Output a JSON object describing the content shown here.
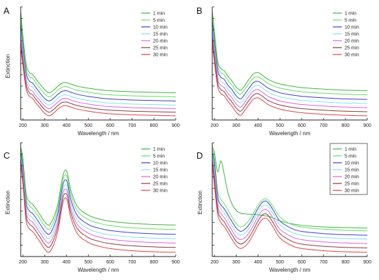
{
  "chart_data": [
    {
      "type": "line",
      "panel_label": "A",
      "xlabel": "Wavelength / nm",
      "ylabel": "Extinction",
      "xlim": [
        190,
        900
      ],
      "y_ticks_labeled": false,
      "xticks": [
        200,
        300,
        400,
        500,
        600,
        700,
        800,
        900
      ],
      "legend_boxed": false,
      "legend_position": "top-right",
      "x": [
        190,
        200,
        215,
        230,
        245,
        260,
        280,
        300,
        320,
        340,
        360,
        380,
        400,
        420,
        450,
        500,
        550,
        600,
        700,
        800,
        900
      ],
      "series": [
        {
          "name": "1 min",
          "color": "#3cb43c",
          "values": [
            20.2,
            15.5,
            9.8,
            8.2,
            7.8,
            6.9,
            5.8,
            4.8,
            4.2,
            4.7,
            5.5,
            6.1,
            6.2,
            5.9,
            5.5,
            5.1,
            4.8,
            4.6,
            4.4,
            4.3,
            4.2
          ]
        },
        {
          "name": "5 min",
          "color": "#60e060",
          "values": [
            19.0,
            14.5,
            9.0,
            7.4,
            7.0,
            6.1,
            5.0,
            4.0,
            3.4,
            3.9,
            4.7,
            5.3,
            5.4,
            5.1,
            4.7,
            4.3,
            4.0,
            3.8,
            3.6,
            3.5,
            3.4
          ]
        },
        {
          "name": "10 min",
          "color": "#3c3cc8",
          "values": [
            17.8,
            13.5,
            8.1,
            6.5,
            6.1,
            5.2,
            4.1,
            3.1,
            2.6,
            3.1,
            3.9,
            4.5,
            4.6,
            4.3,
            3.9,
            3.5,
            3.2,
            3.0,
            2.8,
            2.7,
            2.6
          ]
        },
        {
          "name": "15 min",
          "color": "#80e0f0",
          "values": [
            16.6,
            12.5,
            7.3,
            5.7,
            5.3,
            4.4,
            3.3,
            2.3,
            1.8,
            2.3,
            3.1,
            3.7,
            3.8,
            3.5,
            3.1,
            2.7,
            2.4,
            2.2,
            2.0,
            1.9,
            1.8
          ]
        },
        {
          "name": "20 min",
          "color": "#e060e0",
          "values": [
            15.4,
            11.5,
            6.5,
            4.9,
            4.5,
            3.6,
            2.6,
            1.6,
            1.1,
            1.6,
            2.4,
            3.0,
            3.1,
            2.8,
            2.4,
            2.0,
            1.7,
            1.5,
            1.3,
            1.2,
            1.1
          ]
        },
        {
          "name": "25 min",
          "color": "#8a3a3a",
          "values": [
            14.2,
            10.6,
            5.7,
            4.2,
            3.8,
            2.9,
            1.9,
            0.9,
            0.4,
            0.9,
            1.7,
            2.3,
            2.4,
            2.1,
            1.7,
            1.3,
            1.0,
            0.8,
            0.6,
            0.5,
            0.4
          ]
        },
        {
          "name": "30 min",
          "color": "#e04040",
          "values": [
            13.0,
            9.6,
            5.0,
            3.5,
            3.1,
            2.2,
            1.2,
            0.2,
            -0.3,
            0.2,
            1.0,
            1.6,
            1.7,
            1.4,
            1.0,
            0.6,
            0.3,
            0.1,
            -0.1,
            -0.2,
            -0.3
          ]
        }
      ]
    },
    {
      "type": "line",
      "panel_label": "B",
      "xlabel": "Wavelength / nm",
      "ylabel": "",
      "xlim": [
        190,
        900
      ],
      "y_ticks_labeled": false,
      "xticks": [
        200,
        300,
        400,
        500,
        600,
        700,
        800,
        900
      ],
      "legend_boxed": false,
      "legend_position": "top-right",
      "x": [
        190,
        200,
        215,
        230,
        245,
        260,
        280,
        300,
        320,
        340,
        360,
        380,
        400,
        420,
        450,
        500,
        550,
        600,
        700,
        800,
        900
      ],
      "series": [
        {
          "name": "1 min",
          "color": "#3cb43c",
          "values": [
            20.0,
            16.0,
            10.2,
            8.8,
            8.4,
            7.4,
            6.4,
            5.2,
            4.6,
            5.6,
            6.8,
            7.8,
            8.0,
            7.5,
            6.6,
            5.8,
            5.4,
            5.1,
            4.8,
            4.6,
            4.5
          ]
        },
        {
          "name": "5 min",
          "color": "#60e060",
          "values": [
            19.0,
            15.0,
            9.4,
            8.0,
            7.6,
            6.6,
            5.6,
            4.4,
            3.8,
            4.8,
            6.0,
            7.0,
            7.2,
            6.7,
            5.8,
            5.0,
            4.6,
            4.3,
            4.0,
            3.8,
            3.7
          ]
        },
        {
          "name": "10 min",
          "color": "#3c3cc8",
          "values": [
            18.0,
            14.0,
            8.5,
            7.1,
            6.7,
            5.7,
            4.7,
            3.5,
            2.9,
            3.9,
            5.1,
            6.1,
            6.3,
            5.8,
            4.9,
            4.1,
            3.7,
            3.4,
            3.1,
            2.9,
            2.8
          ]
        },
        {
          "name": "15 min",
          "color": "#80e0f0",
          "values": [
            17.0,
            13.0,
            7.7,
            6.3,
            5.9,
            4.9,
            3.9,
            2.7,
            2.1,
            3.1,
            4.3,
            5.3,
            5.5,
            5.0,
            4.1,
            3.3,
            2.9,
            2.6,
            2.3,
            2.1,
            2.0
          ]
        },
        {
          "name": "20 min",
          "color": "#e060e0",
          "values": [
            16.0,
            12.0,
            6.9,
            5.5,
            5.1,
            4.1,
            3.1,
            1.9,
            1.3,
            2.3,
            3.5,
            4.5,
            4.7,
            4.2,
            3.3,
            2.5,
            2.1,
            1.8,
            1.5,
            1.3,
            1.2
          ]
        },
        {
          "name": "25 min",
          "color": "#8a3a3a",
          "values": [
            15.0,
            11.0,
            6.1,
            4.7,
            4.3,
            3.3,
            2.3,
            1.1,
            0.5,
            1.5,
            2.7,
            3.7,
            3.9,
            3.4,
            2.5,
            1.7,
            1.3,
            1.0,
            0.7,
            0.5,
            0.4
          ]
        },
        {
          "name": "30 min",
          "color": "#e04040",
          "values": [
            14.0,
            10.0,
            5.3,
            3.9,
            3.5,
            2.5,
            1.5,
            0.3,
            -0.3,
            0.7,
            1.9,
            2.9,
            3.1,
            2.6,
            1.7,
            0.9,
            0.5,
            0.2,
            -0.1,
            -0.3,
            -0.4
          ]
        }
      ]
    },
    {
      "type": "line",
      "panel_label": "C",
      "xlabel": "Wavelength / nm",
      "ylabel": "Extinction",
      "xlim": [
        190,
        900
      ],
      "y_ticks_labeled": false,
      "xticks": [
        200,
        300,
        400,
        500,
        600,
        700,
        800,
        900
      ],
      "legend_boxed": false,
      "legend_position": "top-right",
      "x": [
        190,
        200,
        215,
        230,
        245,
        260,
        280,
        300,
        320,
        340,
        360,
        375,
        385,
        395,
        405,
        420,
        450,
        500,
        550,
        600,
        700,
        800,
        900
      ],
      "series": [
        {
          "name": "1 min",
          "color": "#3cb43c",
          "values": [
            19.5,
            17.5,
            11.0,
            9.5,
            9.0,
            8.2,
            7.0,
            5.8,
            5.2,
            6.5,
            9.0,
            12.5,
            14.5,
            15.3,
            14.5,
            11.5,
            8.6,
            7.0,
            6.3,
            5.9,
            5.5,
            5.3,
            5.2
          ]
        },
        {
          "name": "5 min",
          "color": "#60e060",
          "values": [
            19.0,
            16.8,
            10.2,
            8.7,
            8.2,
            7.4,
            6.2,
            5.0,
            4.4,
            5.7,
            8.2,
            11.7,
            13.7,
            14.4,
            13.7,
            10.7,
            7.8,
            6.2,
            5.5,
            5.1,
            4.7,
            4.5,
            4.4
          ]
        },
        {
          "name": "10 min",
          "color": "#3c3cc8",
          "values": [
            18.5,
            16.0,
            9.3,
            7.8,
            7.3,
            6.5,
            5.3,
            4.1,
            3.5,
            4.8,
            7.3,
            10.8,
            12.8,
            13.5,
            12.8,
            9.8,
            6.9,
            5.3,
            4.6,
            4.2,
            3.8,
            3.6,
            3.5
          ]
        },
        {
          "name": "15 min",
          "color": "#80e0f0",
          "values": [
            18.0,
            15.2,
            8.5,
            7.0,
            6.5,
            5.7,
            4.5,
            3.3,
            2.7,
            4.0,
            6.5,
            10.0,
            12.0,
            12.6,
            12.0,
            9.0,
            6.1,
            4.5,
            3.8,
            3.4,
            3.0,
            2.8,
            2.7
          ]
        },
        {
          "name": "20 min",
          "color": "#e060e0",
          "values": [
            17.5,
            14.4,
            7.7,
            6.2,
            5.7,
            4.9,
            3.7,
            2.5,
            1.9,
            3.2,
            5.7,
            9.2,
            11.2,
            11.8,
            11.2,
            8.2,
            5.3,
            3.7,
            3.0,
            2.6,
            2.2,
            2.0,
            1.9
          ]
        },
        {
          "name": "25 min",
          "color": "#8a3a3a",
          "values": [
            17.0,
            13.6,
            6.9,
            5.4,
            4.9,
            4.1,
            2.9,
            1.7,
            1.1,
            2.4,
            4.9,
            8.4,
            10.4,
            11.0,
            10.4,
            7.4,
            4.5,
            2.9,
            2.2,
            1.8,
            1.4,
            1.2,
            1.1
          ]
        },
        {
          "name": "30 min",
          "color": "#e04040",
          "values": [
            16.5,
            12.8,
            6.0,
            4.5,
            4.0,
            3.2,
            2.0,
            0.8,
            0.2,
            1.5,
            4.0,
            7.5,
            9.5,
            10.2,
            9.5,
            6.5,
            3.6,
            2.0,
            1.3,
            0.9,
            0.5,
            0.3,
            0.2
          ]
        }
      ]
    },
    {
      "type": "line",
      "panel_label": "D",
      "xlabel": "Wavelength / nm",
      "ylabel": "Extinction",
      "xlim": [
        190,
        900
      ],
      "y_ticks_labeled": false,
      "xticks": [
        200,
        300,
        400,
        500,
        600,
        700,
        800,
        900
      ],
      "legend_boxed": true,
      "legend_position": "top-right",
      "x": [
        190,
        200,
        215,
        230,
        245,
        260,
        280,
        300,
        320,
        340,
        360,
        380,
        400,
        420,
        435,
        450,
        470,
        500,
        550,
        600,
        700,
        800,
        900
      ],
      "series": [
        {
          "name": "1 min",
          "color": "#3cb43c",
          "values": [
            18.5,
            17.5,
            14.0,
            16.0,
            13.5,
            10.5,
            8.2,
            7.0,
            6.5,
            6.4,
            6.3,
            6.3,
            6.2,
            6.1,
            6.0,
            5.9,
            5.6,
            5.1,
            4.6,
            4.3,
            4.0,
            3.9,
            3.8
          ]
        },
        {
          "name": "5 min",
          "color": "#60e060",
          "values": [
            18.0,
            16.5,
            10.5,
            9.0,
            8.2,
            7.2,
            5.8,
            4.6,
            4.0,
            4.4,
            5.3,
            6.6,
            8.0,
            8.9,
            9.1,
            8.7,
            7.6,
            5.8,
            4.5,
            4.0,
            3.6,
            3.4,
            3.3
          ]
        },
        {
          "name": "10 min",
          "color": "#3c3cc8",
          "values": [
            17.5,
            15.5,
            9.5,
            8.0,
            7.3,
            6.3,
            5.0,
            3.8,
            3.2,
            3.6,
            4.5,
            5.9,
            7.4,
            8.5,
            8.7,
            8.2,
            7.0,
            5.1,
            3.8,
            3.2,
            2.8,
            2.6,
            2.5
          ]
        },
        {
          "name": "15 min",
          "color": "#80e0f0",
          "values": [
            17.0,
            14.5,
            8.7,
            7.2,
            6.5,
            5.5,
            4.2,
            3.0,
            2.5,
            2.9,
            3.8,
            5.2,
            6.7,
            7.8,
            8.0,
            7.5,
            6.3,
            4.4,
            3.1,
            2.5,
            2.1,
            1.9,
            1.8
          ]
        },
        {
          "name": "20 min",
          "color": "#e060e0",
          "values": [
            16.5,
            13.5,
            7.9,
            6.4,
            5.7,
            4.7,
            3.4,
            2.2,
            1.7,
            2.1,
            3.0,
            4.4,
            5.9,
            7.0,
            7.2,
            6.7,
            5.5,
            3.6,
            2.3,
            1.7,
            1.3,
            1.1,
            1.0
          ]
        },
        {
          "name": "25 min",
          "color": "#8a3a3a",
          "values": [
            16.0,
            12.5,
            7.1,
            5.6,
            4.9,
            3.9,
            2.6,
            1.4,
            0.9,
            1.3,
            2.2,
            3.6,
            5.1,
            6.2,
            6.4,
            5.9,
            4.7,
            2.8,
            1.5,
            0.9,
            0.5,
            0.3,
            0.2
          ]
        },
        {
          "name": "30 min",
          "color": "#e04040",
          "values": [
            15.5,
            11.5,
            6.3,
            4.8,
            4.1,
            3.1,
            1.8,
            0.6,
            0.1,
            0.5,
            1.4,
            2.8,
            4.3,
            5.4,
            5.6,
            5.1,
            3.9,
            2.0,
            0.7,
            0.1,
            -0.3,
            -0.5,
            -0.6
          ]
        }
      ]
    }
  ]
}
